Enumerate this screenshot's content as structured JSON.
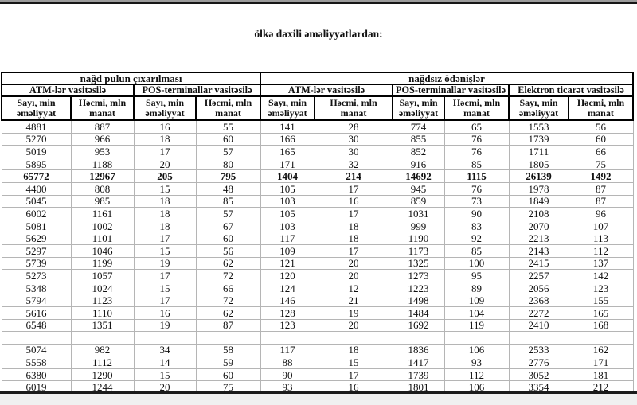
{
  "title": "ölkə daxili əməliyyatlardan:",
  "table": {
    "groups": [
      {
        "label": "nağd pulun çıxarılması"
      },
      {
        "label": "nağdsız ödənişlər"
      }
    ],
    "subgroups": [
      {
        "label": "ATM-lər vasitəsilə"
      },
      {
        "label": "POS-terminallar vasitəsilə"
      },
      {
        "label": "ATM-lər vasitəsilə"
      },
      {
        "label": "POS-terminallar vasitəsilə"
      },
      {
        "label": "Elektron ticarət vasitəsilə"
      }
    ],
    "col_header_types": [
      {
        "line1": "Sayı, min",
        "line2": "əməliyyat"
      },
      {
        "line1": "Həcmi, mln",
        "line2": "manat"
      }
    ],
    "rows": [
      {
        "bold": false,
        "cells": [
          "4881",
          "887",
          "16",
          "55",
          "141",
          "28",
          "774",
          "65",
          "1553",
          "56"
        ]
      },
      {
        "bold": false,
        "cells": [
          "5270",
          "966",
          "18",
          "60",
          "166",
          "30",
          "855",
          "76",
          "1739",
          "60"
        ]
      },
      {
        "bold": false,
        "cells": [
          "5019",
          "953",
          "17",
          "57",
          "165",
          "30",
          "852",
          "76",
          "1711",
          "66"
        ]
      },
      {
        "bold": false,
        "cells": [
          "5895",
          "1188",
          "20",
          "80",
          "171",
          "32",
          "916",
          "85",
          "1805",
          "75"
        ]
      },
      {
        "bold": true,
        "cells": [
          "65772",
          "12967",
          "205",
          "795",
          "1404",
          "214",
          "14692",
          "1115",
          "26139",
          "1492"
        ]
      },
      {
        "bold": false,
        "cells": [
          "4400",
          "808",
          "15",
          "48",
          "105",
          "17",
          "945",
          "76",
          "1978",
          "87"
        ]
      },
      {
        "bold": false,
        "cells": [
          "5045",
          "985",
          "18",
          "85",
          "103",
          "16",
          "859",
          "73",
          "1849",
          "87"
        ]
      },
      {
        "bold": false,
        "cells": [
          "6002",
          "1161",
          "18",
          "57",
          "105",
          "17",
          "1031",
          "90",
          "2108",
          "96"
        ]
      },
      {
        "bold": false,
        "cells": [
          "5081",
          "1002",
          "18",
          "67",
          "103",
          "18",
          "999",
          "83",
          "2070",
          "107"
        ]
      },
      {
        "bold": false,
        "cells": [
          "5629",
          "1101",
          "17",
          "60",
          "117",
          "18",
          "1190",
          "92",
          "2213",
          "113"
        ]
      },
      {
        "bold": false,
        "cells": [
          "5297",
          "1046",
          "15",
          "56",
          "109",
          "17",
          "1173",
          "85",
          "2143",
          "112"
        ]
      },
      {
        "bold": false,
        "cells": [
          "5739",
          "1199",
          "19",
          "62",
          "121",
          "20",
          "1325",
          "100",
          "2415",
          "137"
        ]
      },
      {
        "bold": false,
        "cells": [
          "5273",
          "1057",
          "17",
          "72",
          "120",
          "20",
          "1273",
          "95",
          "2257",
          "142"
        ]
      },
      {
        "bold": false,
        "cells": [
          "5348",
          "1024",
          "15",
          "66",
          "124",
          "12",
          "1223",
          "89",
          "2056",
          "123"
        ]
      },
      {
        "bold": false,
        "cells": [
          "5794",
          "1123",
          "17",
          "72",
          "146",
          "21",
          "1498",
          "109",
          "2368",
          "155"
        ]
      },
      {
        "bold": false,
        "cells": [
          "5616",
          "1110",
          "16",
          "62",
          "128",
          "19",
          "1484",
          "104",
          "2272",
          "165"
        ]
      },
      {
        "bold": false,
        "cells": [
          "6548",
          "1351",
          "19",
          "87",
          "123",
          "20",
          "1692",
          "119",
          "2410",
          "168"
        ]
      },
      {
        "bold": false,
        "cells": [
          "",
          "",
          "",
          "",
          "",
          "",
          "",
          "",
          "",
          ""
        ]
      },
      {
        "bold": false,
        "cells": [
          "5074",
          "982",
          "34",
          "58",
          "117",
          "18",
          "1836",
          "106",
          "2533",
          "162"
        ]
      },
      {
        "bold": false,
        "cells": [
          "5558",
          "1112",
          "14",
          "59",
          "88",
          "15",
          "1417",
          "93",
          "2776",
          "171"
        ]
      },
      {
        "bold": false,
        "cells": [
          "6380",
          "1290",
          "15",
          "60",
          "90",
          "17",
          "1739",
          "112",
          "3052",
          "181"
        ]
      },
      {
        "bold": false,
        "cells": [
          "6019",
          "1244",
          "20",
          "75",
          "93",
          "16",
          "1801",
          "106",
          "3354",
          "212"
        ]
      }
    ]
  },
  "colors": {
    "header_border": "#000000",
    "grid_line": "#b5b5b5",
    "top_line": "#161616",
    "bottom_line": "#1b1b1b",
    "bottom_strip": "#f0f0f0"
  }
}
